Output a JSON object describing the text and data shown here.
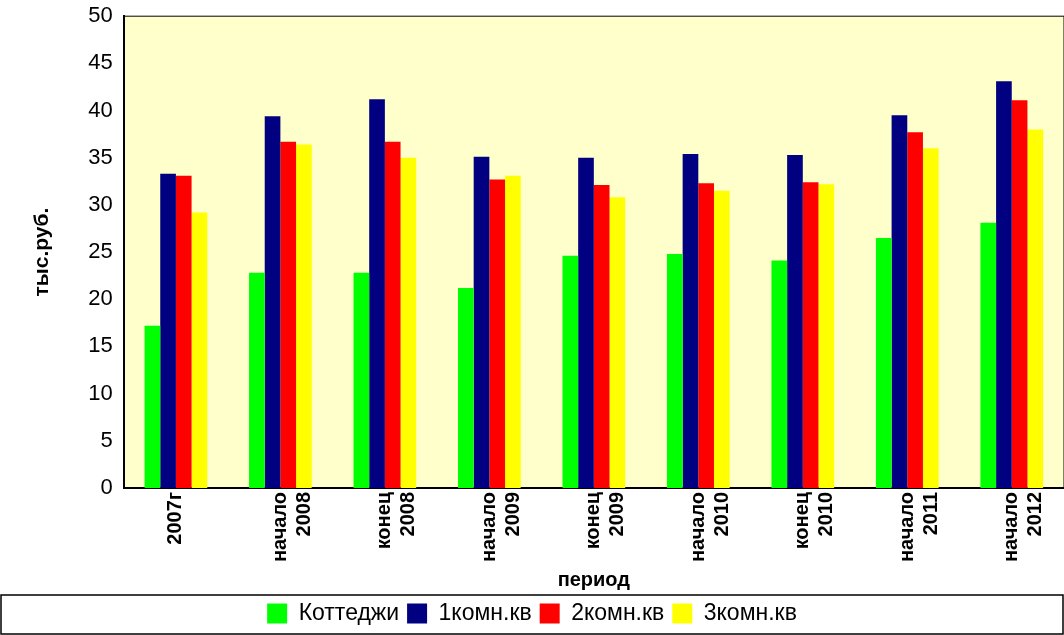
{
  "chart_data": {
    "type": "bar",
    "xlabel": "период",
    "ylabel": "тыс.руб.",
    "categories": [
      "2007г",
      "начало 2008",
      "конец 2008",
      "начало 2009",
      "конец 2009",
      "начало 2010",
      "конец 2010",
      "начало 2011",
      "начало 2012"
    ],
    "series": [
      {
        "name": "Коттеджи",
        "color": "#00ff00",
        "values": [
          17.2,
          22.8,
          22.8,
          21.2,
          24.6,
          24.8,
          24.1,
          26.5,
          28.1
        ]
      },
      {
        "name": "1комн.кв",
        "color": "#000080",
        "values": [
          33.3,
          39.4,
          41.2,
          35.1,
          35.0,
          35.4,
          35.3,
          39.5,
          43.1
        ]
      },
      {
        "name": "2комн.кв",
        "color": "#ff0000",
        "values": [
          33.1,
          36.7,
          36.7,
          32.7,
          32.1,
          32.3,
          32.4,
          37.7,
          41.1
        ]
      },
      {
        "name": "3комн.кв",
        "color": "#ffff00",
        "values": [
          29.2,
          36.4,
          35.0,
          33.1,
          30.8,
          31.5,
          32.2,
          36.0,
          38.0
        ]
      }
    ],
    "ylim": [
      0,
      50
    ],
    "yticks": [
      0,
      5,
      10,
      15,
      20,
      25,
      30,
      35,
      40,
      45,
      50
    ],
    "grid": false,
    "legend": "bottom"
  }
}
